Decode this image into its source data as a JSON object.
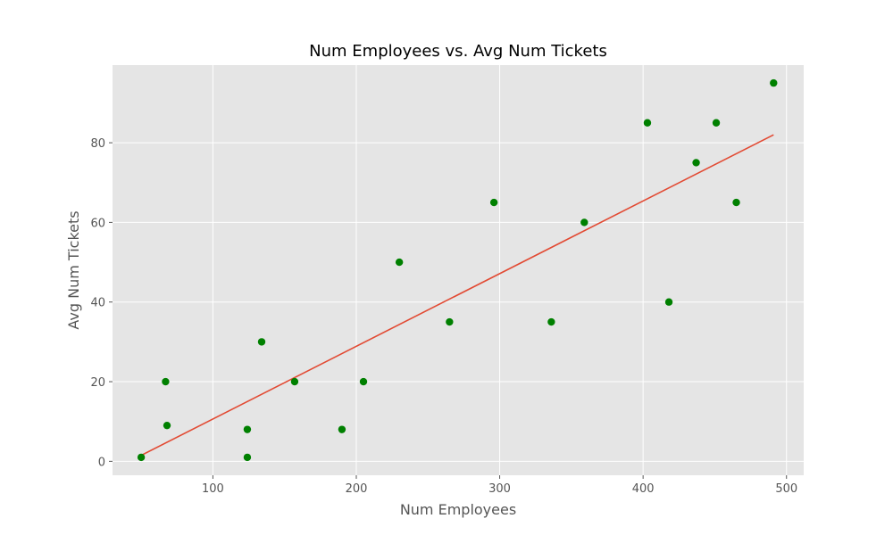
{
  "chart_data": {
    "type": "scatter",
    "title": "Num Employees vs. Avg Num Tickets",
    "xlabel": "Num Employees",
    "ylabel": "Avg Num Tickets",
    "xlim": [
      30,
      512
    ],
    "ylim": [
      -3.5,
      99.5
    ],
    "xticks": [
      100,
      200,
      300,
      400,
      500
    ],
    "yticks": [
      0,
      20,
      40,
      60,
      80
    ],
    "grid": true,
    "colors": {
      "background": "#e5e5e5",
      "points": "#008000",
      "trend_line": "#e24a33"
    },
    "points": [
      {
        "x": 50,
        "y": 1
      },
      {
        "x": 67,
        "y": 20
      },
      {
        "x": 68,
        "y": 9
      },
      {
        "x": 124,
        "y": 8
      },
      {
        "x": 124,
        "y": 1
      },
      {
        "x": 134,
        "y": 30
      },
      {
        "x": 157,
        "y": 20
      },
      {
        "x": 190,
        "y": 8
      },
      {
        "x": 205,
        "y": 20
      },
      {
        "x": 230,
        "y": 50
      },
      {
        "x": 265,
        "y": 35
      },
      {
        "x": 296,
        "y": 65
      },
      {
        "x": 336,
        "y": 35
      },
      {
        "x": 359,
        "y": 60
      },
      {
        "x": 403,
        "y": 85
      },
      {
        "x": 418,
        "y": 40
      },
      {
        "x": 437,
        "y": 75
      },
      {
        "x": 451,
        "y": 85
      },
      {
        "x": 465,
        "y": 65
      },
      {
        "x": 491,
        "y": 95
      }
    ],
    "trend_line": {
      "x": [
        50,
        491
      ],
      "y": [
        1.5,
        82
      ]
    }
  }
}
